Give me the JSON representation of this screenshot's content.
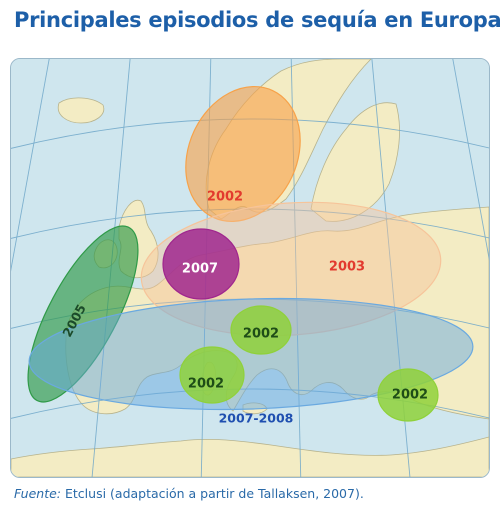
{
  "title": "Principales episodios de sequía en Europa",
  "source": {
    "prefix": "Fuente:",
    "text": " Etclusi (adaptación a partir de Tallaksen, 2007)."
  },
  "episodes": [
    {
      "id": "scandinavia",
      "label": "2002",
      "color": "#f7a24a",
      "label_color": "#e23a2e"
    },
    {
      "id": "central-europe",
      "label": "2003",
      "color": "#f6c49a",
      "label_color": "#e23a2e"
    },
    {
      "id": "iberia",
      "label": "2005",
      "color": "#2f9a48",
      "label_color": "#1b4a2a"
    },
    {
      "id": "france",
      "label": "2007",
      "color": "#a0278e",
      "label_color": "#ffffff"
    },
    {
      "id": "mediterranean",
      "label": "2007-2008",
      "color": "#6aa9e0",
      "label_color": "#1f4fb0"
    },
    {
      "id": "italy",
      "label": "2002",
      "color": "#8fd13a",
      "label_color": "#1e4d17"
    },
    {
      "id": "tunisia",
      "label": "2002",
      "color": "#8fd13a",
      "label_color": "#1e4d17"
    },
    {
      "id": "greece-turkey",
      "label": "2002",
      "color": "#8fd13a",
      "label_color": "#1e4d17"
    }
  ],
  "colors": {
    "sea": "#cfe6ee",
    "land": "#f3ecc4",
    "graticule": "#6fa7c9",
    "title": "#1d5fa8"
  }
}
